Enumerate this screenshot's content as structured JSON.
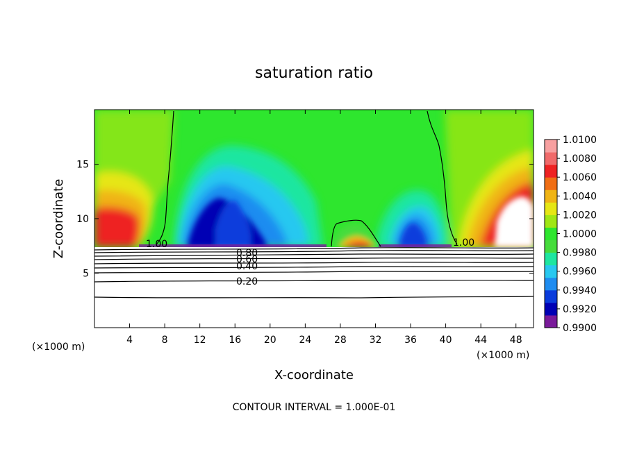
{
  "chart_data": {
    "type": "heatmap",
    "title": "saturation ratio",
    "xlabel": "X-coordinate",
    "ylabel": "Z-coordinate",
    "x_unit_left": "(×1000 m)",
    "x_unit_right": "(×1000 m)",
    "footer": "CONTOUR INTERVAL = 1.000E-01",
    "xlim": [
      0,
      50
    ],
    "ylim": [
      0,
      20
    ],
    "x_ticks": [
      4,
      8,
      12,
      16,
      20,
      24,
      28,
      32,
      36,
      40,
      44,
      48
    ],
    "y_ticks": [
      5,
      10,
      15
    ],
    "colorbar": {
      "min": 0.99,
      "max": 1.01,
      "ticks": [
        "1.0100",
        "1.0080",
        "1.0060",
        "1.0040",
        "1.0020",
        "1.0000",
        "0.9980",
        "0.9960",
        "0.9940",
        "0.9920",
        "0.9900"
      ],
      "colors": [
        "#7a1a9a",
        "#0000b4",
        "#0a3cdc",
        "#1e8cf0",
        "#28c8f0",
        "#1ee6a0",
        "#46dc3c",
        "#2ee62e",
        "#a0e614",
        "#e6e614",
        "#f0b414",
        "#f06e14",
        "#ee2222",
        "#f06a6a",
        "#f7a0a0"
      ]
    },
    "contour_labels": [
      "1.00",
      "1.00",
      "0.80",
      "0.60",
      "0.40",
      "0.20"
    ],
    "contour_values": [
      1.0,
      0.8,
      0.6,
      0.4,
      0.2
    ],
    "colors": {
      "low": "#0000b4",
      "neutral": "#2ee62e",
      "high": "#ee2222",
      "background": "#ffffff"
    }
  }
}
